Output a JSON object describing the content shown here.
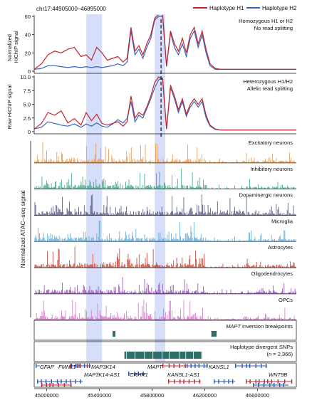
{
  "coords": "chr17:44905000–46895000",
  "legend": [
    {
      "name": "Haplotype H1",
      "color": "#c0272d"
    },
    {
      "name": "Haplotype H2",
      "color": "#3a64b6"
    }
  ],
  "panel1": {
    "ylabel": "Normalized HiChIP signal",
    "annot1": "Homozygous H1 or H2",
    "annot2": "No read splitting",
    "ticks": [
      "0",
      "20",
      "40",
      "60"
    ]
  },
  "panel2": {
    "ylabel": "Raw HiChIP signal",
    "annot1": "Heterozygous H1/H2",
    "annot2": "Allelic read splitting",
    "ticks": [
      "0",
      "2.5",
      "5.0",
      "7.5",
      "10.0"
    ]
  },
  "atac": {
    "ylabel": "Normalized ATAC–seq signal",
    "tracks": [
      {
        "label": "Excitatory neurons",
        "color": "#e8954a"
      },
      {
        "label": "Inhibitory neurons",
        "color": "#3aa57f"
      },
      {
        "label": "Dopaminergic neurons",
        "color": "#4a4e7e"
      },
      {
        "label": "Microglia",
        "color": "#5aa9d8"
      },
      {
        "label": "Astrocytes",
        "color": "#c8392b"
      },
      {
        "label": "Oligodendrocytes",
        "color": "#8e4bb0"
      },
      {
        "label": "OPCs",
        "color": "#d470c8"
      }
    ]
  },
  "inversion": {
    "gene": "MAPT",
    "suffix": " inversion breakpoints"
  },
  "snps": {
    "line1": "Haplotype divergent SNPs",
    "line2_pre": "(",
    "line2_n": "n",
    "line2_post": " = 2,366)"
  },
  "genes": {
    "row1": [
      {
        "name": "GFAP",
        "color": "blue"
      },
      {
        "name": "FMNL1",
        "color": "red"
      },
      {
        "name": "MAP3K14",
        "color": "blue"
      },
      {
        "name": "MAPT",
        "color": "red"
      },
      {
        "name": "KANSL1",
        "color": "blue"
      }
    ],
    "row2": [
      {
        "name": "MAP3K14-AS1",
        "color": "red"
      },
      {
        "name": "CRHR1",
        "color": "red"
      },
      {
        "name": "KANSL1-AS1",
        "color": "red"
      },
      {
        "name": "WNT9B",
        "color": "red"
      }
    ]
  },
  "x_ticks": [
    "45000000",
    "45400000",
    "45800000",
    "46200000",
    "46600000"
  ],
  "colors": {
    "h1": "#c0272d",
    "h2": "#3a64b6",
    "highlight": "#c9d3f7",
    "breakpoint": "#2e6e68"
  },
  "chart_data": {
    "type": "line",
    "xlim": [
      44905000,
      46895000
    ],
    "highlight_regions": [
      [
        45300000,
        45420000
      ],
      [
        45820000,
        45900000
      ]
    ],
    "dashed_line_x": 45868000,
    "panels": [
      {
        "name": "panel1",
        "ylim": [
          0,
          60
        ],
        "x": [
          44905000,
          44960000,
          45010000,
          45060000,
          45110000,
          45160000,
          45210000,
          45260000,
          45300000,
          45340000,
          45380000,
          45420000,
          45460000,
          45500000,
          45540000,
          45580000,
          45610000,
          45640000,
          45670000,
          45700000,
          45730000,
          45760000,
          45790000,
          45820000,
          45850000,
          45880000,
          45910000,
          45940000,
          45970000,
          46000000,
          46030000,
          46060000,
          46090000,
          46120000,
          46150000,
          46180000,
          46210000,
          46240000,
          46280000,
          46320000,
          46400000,
          46500000,
          46600000,
          46700000,
          46800000,
          46895000
        ],
        "series": [
          {
            "name": "Haplotype H1",
            "values": [
              2,
              8,
              18,
              22,
              20,
              24,
              26,
              16,
              18,
              12,
              26,
              20,
              12,
              14,
              16,
              10,
              14,
              48,
              22,
              28,
              18,
              30,
              40,
              58,
              62,
              62,
              6,
              44,
              30,
              22,
              36,
              20,
              40,
              48,
              30,
              44,
              24,
              8,
              3,
              2,
              2,
              2,
              2,
              2,
              2,
              2
            ]
          },
          {
            "name": "Haplotype H2",
            "values": [
              2,
              3,
              6,
              6,
              5,
              4,
              5,
              4,
              5,
              4,
              5,
              4,
              5,
              6,
              8,
              6,
              10,
              44,
              18,
              24,
              14,
              26,
              36,
              56,
              60,
              60,
              5,
              42,
              26,
              18,
              30,
              16,
              36,
              44,
              26,
              40,
              20,
              6,
              2,
              2,
              2,
              2,
              2,
              2,
              2,
              2
            ]
          }
        ]
      },
      {
        "name": "panel2",
        "ylim": [
          0,
          10
        ],
        "x": [
          44905000,
          44960000,
          45010000,
          45060000,
          45110000,
          45160000,
          45210000,
          45260000,
          45300000,
          45340000,
          45380000,
          45420000,
          45460000,
          45500000,
          45540000,
          45580000,
          45610000,
          45640000,
          45670000,
          45700000,
          45730000,
          45760000,
          45790000,
          45820000,
          45850000,
          45880000,
          45910000,
          45940000,
          45970000,
          46000000,
          46030000,
          46060000,
          46090000,
          46120000,
          46150000,
          46180000,
          46210000,
          46240000,
          46280000,
          46320000,
          46400000,
          46500000,
          46600000,
          46700000,
          46800000,
          46895000
        ],
        "series": [
          {
            "name": "Haplotype H1",
            "values": [
              0.5,
              1.5,
              3.5,
              3,
              3.8,
              1.6,
              2.4,
              1.2,
              3.5,
              2,
              3.2,
              1.5,
              1.2,
              1.5,
              1.8,
              1,
              1.8,
              6.5,
              2.5,
              3.5,
              3,
              4.5,
              6.5,
              9,
              10,
              9.5,
              0.5,
              8.5,
              6.5,
              4,
              6,
              3.2,
              5,
              6,
              5,
              6,
              3,
              1.2,
              0.5,
              0.3,
              0.3,
              0.3,
              0.3,
              0.3,
              0.3,
              0.3
            ]
          },
          {
            "name": "Haplotype H2",
            "values": [
              0.5,
              0.8,
              1.8,
              1.5,
              1.2,
              1,
              1.4,
              0.8,
              1.4,
              1,
              1.6,
              1,
              0.8,
              1.4,
              2.2,
              1.6,
              2.4,
              5.5,
              1.8,
              3,
              2.5,
              4.2,
              6,
              8,
              9.5,
              9.8,
              0.5,
              8,
              6,
              3.5,
              5.5,
              2.8,
              4.5,
              5.5,
              4.5,
              5.5,
              2.5,
              1,
              0.4,
              0.3,
              0.3,
              0.3,
              0.3,
              0.3,
              0.3,
              0.3
            ]
          }
        ]
      }
    ],
    "inversion_breakpoints": [
      [
        45500000,
        45515000
      ],
      [
        46250000,
        46290000
      ]
    ],
    "snp_region": [
      45590000,
      46180000
    ]
  }
}
